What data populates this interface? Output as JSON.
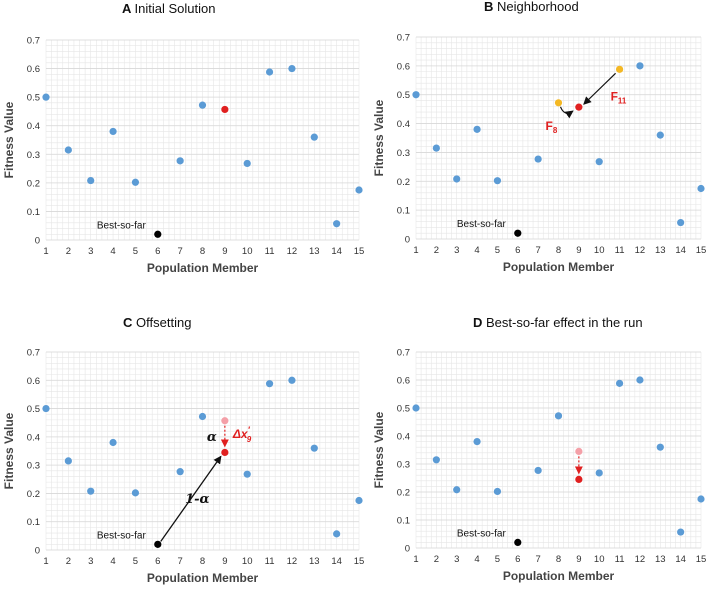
{
  "colors": {
    "blue": "#5b9bd5",
    "red": "#e02020",
    "lightred": "#f4a0a8",
    "orange": "#f4b824",
    "black": "#000000",
    "grid": "#e6e6e6"
  },
  "chart_data": [
    {
      "type": "scatter",
      "letter": "A",
      "title": "Initial Solution",
      "xlabel": "Population Member",
      "ylabel": "Fitness Value",
      "xlim": [
        1,
        15
      ],
      "ylim": [
        0,
        0.7
      ],
      "xticks": [
        "1",
        "2",
        "3",
        "4",
        "5",
        "6",
        "7",
        "8",
        "9",
        "10",
        "11",
        "12",
        "13",
        "14",
        "15"
      ],
      "yticks": [
        "0",
        "0.1",
        "0.2",
        "0.3",
        "0.4",
        "0.5",
        "0.6",
        "0.7"
      ],
      "series": [
        {
          "name": "population",
          "color": "#5b9bd5",
          "x": [
            1,
            2,
            3,
            4,
            5,
            7,
            8,
            10,
            11,
            12,
            13,
            14,
            15
          ],
          "y": [
            0.5,
            0.315,
            0.208,
            0.38,
            0.202,
            0.277,
            0.472,
            0.268,
            0.588,
            0.6,
            0.36,
            0.057,
            0.175
          ]
        },
        {
          "name": "selected",
          "color": "#e02020",
          "x": [
            9
          ],
          "y": [
            0.457
          ]
        },
        {
          "name": "best-so-far",
          "color": "#000000",
          "x": [
            6
          ],
          "y": [
            0.02
          ]
        }
      ],
      "annotations": {
        "best_label": "Best-so-far"
      }
    },
    {
      "type": "scatter",
      "letter": "B",
      "title": "Neighborhood",
      "xlabel": "Population Member",
      "ylabel": "Fitness Value",
      "xlim": [
        1,
        15
      ],
      "ylim": [
        0,
        0.7
      ],
      "xticks": [
        "1",
        "2",
        "3",
        "4",
        "5",
        "6",
        "7",
        "8",
        "9",
        "10",
        "11",
        "12",
        "13",
        "14",
        "15"
      ],
      "yticks": [
        "0",
        "0.1",
        "0.2",
        "0.3",
        "0.4",
        "0.5",
        "0.6",
        "0.7"
      ],
      "series": [
        {
          "name": "population",
          "color": "#5b9bd5",
          "x": [
            1,
            2,
            3,
            4,
            5,
            7,
            10,
            12,
            13,
            14,
            15
          ],
          "y": [
            0.5,
            0.315,
            0.208,
            0.38,
            0.202,
            0.277,
            0.268,
            0.6,
            0.36,
            0.057,
            0.175
          ]
        },
        {
          "name": "neighbors",
          "color": "#f4b824",
          "x": [
            8,
            11
          ],
          "y": [
            0.472,
            0.588
          ]
        },
        {
          "name": "selected",
          "color": "#e02020",
          "x": [
            9
          ],
          "y": [
            0.457
          ]
        },
        {
          "name": "best-so-far",
          "color": "#000000",
          "x": [
            6
          ],
          "y": [
            0.02
          ]
        }
      ],
      "annotations": {
        "best_label": "Best-so-far",
        "f8_main": "F",
        "f8_sub": "8",
        "f11_main": "F",
        "f11_sub": "11"
      }
    },
    {
      "type": "scatter",
      "letter": "C",
      "title": "Offsetting",
      "xlabel": "Population Member",
      "ylabel": "Fitness Value",
      "xlim": [
        1,
        15
      ],
      "ylim": [
        0,
        0.7
      ],
      "xticks": [
        "1",
        "2",
        "3",
        "4",
        "5",
        "6",
        "7",
        "8",
        "9",
        "10",
        "11",
        "12",
        "13",
        "14",
        "15"
      ],
      "yticks": [
        "0",
        "0.1",
        "0.2",
        "0.3",
        "0.4",
        "0.5",
        "0.6",
        "0.7"
      ],
      "series": [
        {
          "name": "population",
          "color": "#5b9bd5",
          "x": [
            1,
            2,
            3,
            4,
            5,
            7,
            8,
            10,
            11,
            12,
            13,
            14,
            15
          ],
          "y": [
            0.5,
            0.315,
            0.208,
            0.38,
            0.202,
            0.277,
            0.472,
            0.268,
            0.588,
            0.6,
            0.36,
            0.057,
            0.175
          ]
        },
        {
          "name": "previous",
          "color": "#f4a0a8",
          "x": [
            9
          ],
          "y": [
            0.457
          ]
        },
        {
          "name": "new",
          "color": "#e02020",
          "x": [
            9
          ],
          "y": [
            0.345
          ]
        },
        {
          "name": "best-so-far",
          "color": "#000000",
          "x": [
            6
          ],
          "y": [
            0.02
          ]
        }
      ],
      "annotations": {
        "best_label": "Best-so-far",
        "alpha": "α",
        "one_minus_alpha": "1-α",
        "delta_main": "Δx",
        "delta_prime": "′",
        "delta_sub": "9"
      }
    },
    {
      "type": "scatter",
      "letter": "D",
      "title": "Best-so-far effect in the run",
      "xlabel": "Population Member",
      "ylabel": "Fitness Value",
      "xlim": [
        1,
        15
      ],
      "ylim": [
        0,
        0.7
      ],
      "xticks": [
        "1",
        "2",
        "3",
        "4",
        "5",
        "6",
        "7",
        "8",
        "9",
        "10",
        "11",
        "12",
        "13",
        "14",
        "15"
      ],
      "yticks": [
        "0",
        "0.1",
        "0.2",
        "0.3",
        "0.4",
        "0.5",
        "0.6",
        "0.7"
      ],
      "series": [
        {
          "name": "population",
          "color": "#5b9bd5",
          "x": [
            1,
            2,
            3,
            4,
            5,
            7,
            8,
            10,
            11,
            12,
            13,
            14,
            15
          ],
          "y": [
            0.5,
            0.315,
            0.208,
            0.38,
            0.202,
            0.277,
            0.472,
            0.268,
            0.588,
            0.6,
            0.36,
            0.057,
            0.175
          ]
        },
        {
          "name": "previous",
          "color": "#f4a0a8",
          "x": [
            9
          ],
          "y": [
            0.345
          ]
        },
        {
          "name": "new",
          "color": "#e02020",
          "x": [
            9
          ],
          "y": [
            0.245
          ]
        },
        {
          "name": "best-so-far",
          "color": "#000000",
          "x": [
            6
          ],
          "y": [
            0.02
          ]
        }
      ],
      "annotations": {
        "best_label": "Best-so-far"
      }
    }
  ]
}
